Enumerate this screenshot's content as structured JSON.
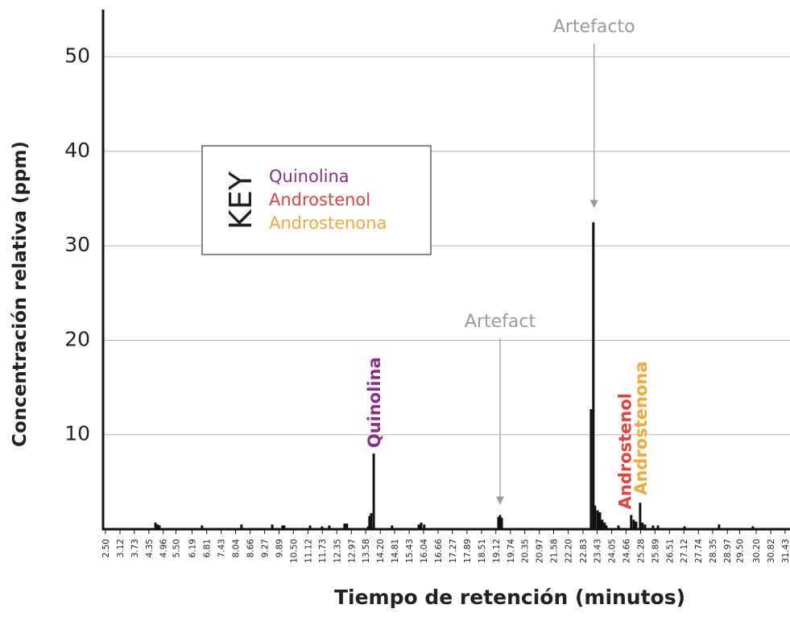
{
  "chart_data": {
    "type": "bar",
    "xlabel": "Tiempo de retención (minutos)",
    "ylabel": "Concentración relativa (ppm)",
    "xlim": [
      2.4,
      31.64
    ],
    "ylim": [
      0,
      55
    ],
    "yticks": [
      10,
      20,
      30,
      40,
      50
    ],
    "xticks": [
      {
        "value": 2.5,
        "label": "2.50"
      },
      {
        "value": 3.12,
        "label": "3.12"
      },
      {
        "value": 3.73,
        "label": "3.73"
      },
      {
        "value": 4.35,
        "label": "4.35"
      },
      {
        "value": 4.96,
        "label": "4.96"
      },
      {
        "value": 5.5,
        "label": "5.50"
      },
      {
        "value": 6.19,
        "label": "6.19"
      },
      {
        "value": 6.81,
        "label": "6.81"
      },
      {
        "value": 7.43,
        "label": "7.43"
      },
      {
        "value": 8.04,
        "label": "8.04"
      },
      {
        "value": 8.66,
        "label": "8.66"
      },
      {
        "value": 9.27,
        "label": "9.27"
      },
      {
        "value": 9.89,
        "label": "9.89"
      },
      {
        "value": 10.5,
        "label": "10.50"
      },
      {
        "value": 11.12,
        "label": "11.12"
      },
      {
        "value": 11.73,
        "label": "11.73"
      },
      {
        "value": 12.35,
        "label": "12.35"
      },
      {
        "value": 12.97,
        "label": "12.97"
      },
      {
        "value": 13.58,
        "label": "13.58"
      },
      {
        "value": 14.2,
        "label": "14.20"
      },
      {
        "value": 14.81,
        "label": "14.81"
      },
      {
        "value": 15.43,
        "label": "15.43"
      },
      {
        "value": 16.04,
        "label": "16.04"
      },
      {
        "value": 16.66,
        "label": "16.66"
      },
      {
        "value": 17.27,
        "label": "17.27"
      },
      {
        "value": 17.89,
        "label": "17.89"
      },
      {
        "value": 18.51,
        "label": "18.51"
      },
      {
        "value": 19.12,
        "label": "19.12"
      },
      {
        "value": 19.74,
        "label": "19.74"
      },
      {
        "value": 20.35,
        "label": "20.35"
      },
      {
        "value": 20.97,
        "label": "20.97"
      },
      {
        "value": 21.58,
        "label": "21.58"
      },
      {
        "value": 22.2,
        "label": "22.20"
      },
      {
        "value": 22.83,
        "label": "22.83"
      },
      {
        "value": 23.43,
        "label": "23.43"
      },
      {
        "value": 24.05,
        "label": "24.05"
      },
      {
        "value": 24.66,
        "label": "24.66"
      },
      {
        "value": 25.28,
        "label": "25.28"
      },
      {
        "value": 25.89,
        "label": "25.89"
      },
      {
        "value": 26.51,
        "label": "26.51"
      },
      {
        "value": 27.12,
        "label": "27.12"
      },
      {
        "value": 27.74,
        "label": "27.74"
      },
      {
        "value": 28.35,
        "label": "28.35"
      },
      {
        "value": 28.97,
        "label": "28.97"
      },
      {
        "value": 29.5,
        "label": "29.50"
      },
      {
        "value": 30.2,
        "label": "30.20"
      },
      {
        "value": 30.82,
        "label": "30.82"
      },
      {
        "value": 31.43,
        "label": "31.43"
      }
    ],
    "grid": true,
    "color": "#111111",
    "x": [
      4.63,
      4.73,
      4.8,
      6.61,
      8.29,
      9.6,
      10.04,
      10.11,
      11.21,
      11.72,
      12.03,
      12.68,
      12.78,
      13.68,
      13.74,
      13.81,
      13.92,
      14.7,
      15.84,
      15.94,
      16.07,
      19.23,
      19.3,
      19.37,
      23.17,
      23.27,
      23.34,
      23.45,
      23.55,
      23.65,
      23.75,
      23.82,
      24.34,
      24.88,
      24.99,
      25.09,
      25.26,
      25.36,
      25.47,
      25.81,
      26.02,
      27.15,
      28.62,
      30.06
    ],
    "values": [
      0.7,
      0.5,
      0.4,
      0.4,
      0.5,
      0.5,
      0.4,
      0.4,
      0.4,
      0.3,
      0.4,
      0.6,
      0.6,
      0.3,
      1.4,
      1.7,
      8.0,
      0.4,
      0.5,
      0.7,
      0.5,
      1.3,
      1.5,
      1.2,
      12.7,
      32.5,
      2.5,
      2.0,
      1.8,
      1.0,
      0.7,
      0.4,
      0.4,
      1.5,
      1.0,
      0.8,
      2.8,
      0.7,
      0.5,
      0.4,
      0.4,
      0.3,
      0.5,
      0.3
    ],
    "arrow_annotations": [
      {
        "text": "Artefacto",
        "x": 23.3,
        "y": 34
      },
      {
        "text": "Artefact",
        "x": 19.3,
        "y": 2.6
      }
    ],
    "peak_labels": [
      {
        "text": "Quinolina",
        "x": 13.92,
        "y": 8.6,
        "color": "#8e2a8e"
      },
      {
        "text": "Androstenol",
        "x": 24.6,
        "y": 2.1,
        "color": "#e8403a"
      },
      {
        "text": "Androstenona",
        "x": 25.26,
        "y": 3.6,
        "color": "#f3a83b"
      }
    ],
    "key": {
      "title": "KEY",
      "items": [
        {
          "name": "Quinolina",
          "color": "#8e2a8e"
        },
        {
          "name": "Androstenol",
          "color": "#e8403a"
        },
        {
          "name": "Androstenona",
          "color": "#f3a83b"
        }
      ]
    }
  }
}
